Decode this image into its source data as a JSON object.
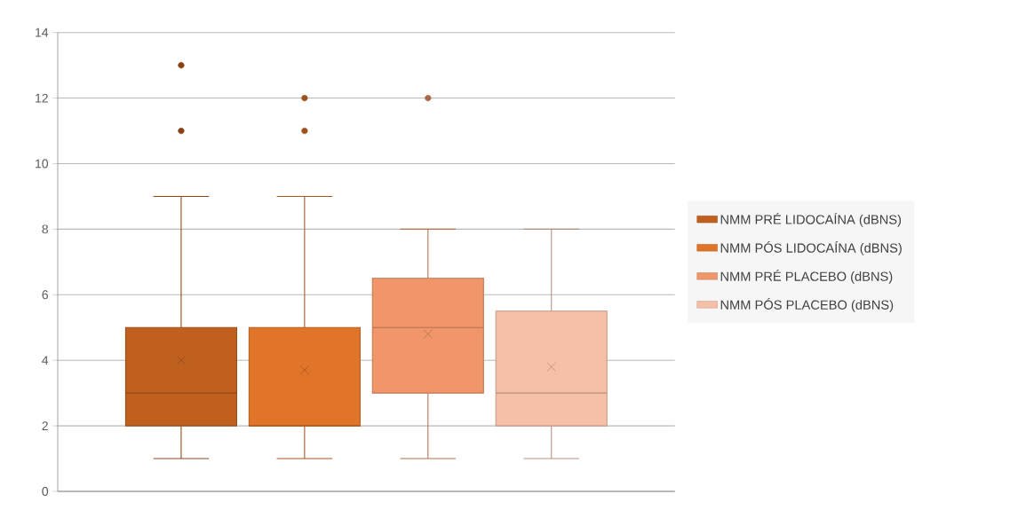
{
  "chart_data": {
    "type": "box",
    "categories": [
      null
    ],
    "ylim": [
      0,
      14
    ],
    "yticks": [
      0,
      2,
      4,
      6,
      8,
      10,
      12,
      14
    ],
    "grid": "y",
    "legend": "right",
    "tick_labels": "y",
    "series": [
      {
        "name": "NMM PRÉ LIDOCAÍNA (dBNS)",
        "color": "#c0601f",
        "boxes": [
          {
            "low": 1,
            "q1": 2,
            "median": 3,
            "q3": 5,
            "high": 9,
            "mean": 4.0,
            "outliers": [
              11,
              13
            ]
          }
        ]
      },
      {
        "name": "NMM PÓS LIDOCAÍNA (dBNS)",
        "color": "#e07428",
        "boxes": [
          {
            "low": 1,
            "q1": 2,
            "median": 2,
            "q3": 5,
            "high": 9,
            "mean": 3.7,
            "outliers": [
              11,
              12
            ]
          }
        ]
      },
      {
        "name": "NMM PRÉ PLACEBO  (dBNS)",
        "color": "#f0966a",
        "boxes": [
          {
            "low": 1,
            "q1": 3,
            "median": 5,
            "q3": 6.5,
            "high": 8,
            "mean": 4.8,
            "outliers": [
              12
            ]
          }
        ]
      },
      {
        "name": "NMM PÓS PLACEBO (dBNS)",
        "color": "#f5bfa8",
        "boxes": [
          {
            "low": 1,
            "q1": 2,
            "median": 3,
            "q3": 5.5,
            "high": 8,
            "mean": 3.8
          }
        ]
      }
    ]
  }
}
